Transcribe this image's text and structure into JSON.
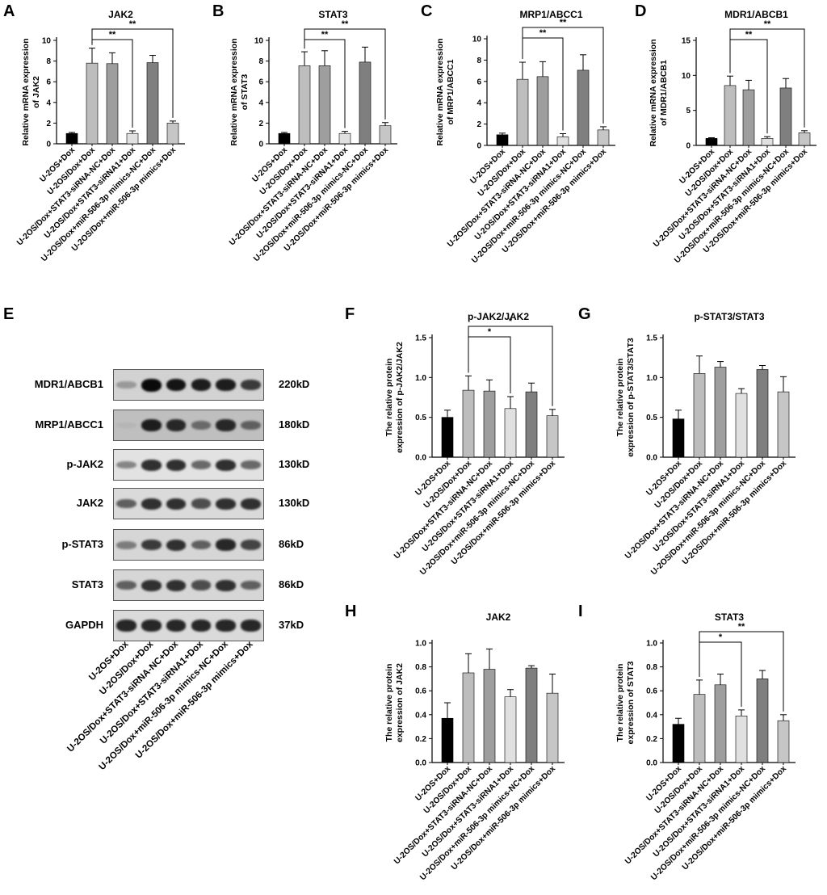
{
  "panel_letters": [
    "A",
    "B",
    "C",
    "D",
    "E",
    "F",
    "G",
    "H",
    "I"
  ],
  "colors": {
    "u2os": "#000000",
    "dox": "#bdbdbd",
    "nc": "#9e9e9e",
    "sirna": "#e0e0e0",
    "mimicsnc": "#7f7f7f",
    "mimics": "#c6c6c6",
    "axis": "#000000"
  },
  "categories": [
    "U-2OS+Dox",
    "U-2OS/Dox+Dox",
    "U-2OS/Dox+STAT3-siRNA-NC+Dox",
    "U-2OS/Dox+STAT3-siRNA1+Dox",
    "U-2OS/Dox+miR-506-3p mimics-NC+Dox",
    "U-2OS/Dox+miR-506-3p mimics+Dox"
  ],
  "blot": {
    "rows": [
      {
        "label": "MDR1/ABCB1",
        "size": "220kD",
        "intensity": [
          0.25,
          1.0,
          0.95,
          0.9,
          0.9,
          0.75
        ],
        "bg": "#d2d2d2"
      },
      {
        "label": "MRP1/ABCC1",
        "size": "180kD",
        "intensity": [
          0.1,
          0.9,
          0.85,
          0.5,
          0.85,
          0.55
        ],
        "bg": "#bfbfbf"
      },
      {
        "label": "p-JAK2",
        "size": "130kD",
        "intensity": [
          0.35,
          0.8,
          0.8,
          0.5,
          0.8,
          0.5
        ],
        "bg": "#e2e2e2"
      },
      {
        "label": "JAK2",
        "size": "130kD",
        "intensity": [
          0.55,
          0.8,
          0.8,
          0.65,
          0.8,
          0.8
        ],
        "bg": "#dadada"
      },
      {
        "label": "p-STAT3",
        "size": "86kD",
        "intensity": [
          0.4,
          0.75,
          0.8,
          0.55,
          0.85,
          0.7
        ],
        "bg": "#d6d6d6"
      },
      {
        "label": "STAT3",
        "size": "86kD",
        "intensity": [
          0.55,
          0.8,
          0.8,
          0.65,
          0.8,
          0.55
        ],
        "bg": "#d6d6d6"
      },
      {
        "label": "GAPDH",
        "size": "37kD",
        "intensity": [
          0.85,
          0.85,
          0.85,
          0.85,
          0.85,
          0.85
        ],
        "bg": "#dadada"
      }
    ]
  },
  "chart_data": [
    {
      "id": "A",
      "type": "bar",
      "title": "JAK2",
      "ylabel": [
        "Relative mRNA expression",
        "of JAK2"
      ],
      "ylim": [
        0,
        10
      ],
      "ticks": [
        0,
        2,
        4,
        6,
        8,
        10
      ],
      "values": [
        1.0,
        7.8,
        7.75,
        1.0,
        7.85,
        2.0
      ],
      "errors": [
        0.1,
        1.45,
        1.05,
        0.25,
        0.7,
        0.2
      ],
      "sig": [
        {
          "from": 1,
          "to": 3,
          "label": "**"
        },
        {
          "from": 1,
          "to": 5,
          "label": "**"
        }
      ]
    },
    {
      "id": "B",
      "type": "bar",
      "title": "STAT3",
      "ylabel": [
        "Relative mRNA expression",
        "of STAT3"
      ],
      "ylim": [
        0,
        10
      ],
      "ticks": [
        0,
        2,
        4,
        6,
        8,
        10
      ],
      "values": [
        1.0,
        7.55,
        7.55,
        1.0,
        7.9,
        1.75
      ],
      "errors": [
        0.1,
        1.35,
        1.45,
        0.2,
        1.45,
        0.3
      ],
      "sig": [
        {
          "from": 1,
          "to": 3,
          "label": "**"
        },
        {
          "from": 1,
          "to": 5,
          "label": "**"
        }
      ]
    },
    {
      "id": "C",
      "type": "bar",
      "title": "MRP1/ABCC1",
      "ylabel": [
        "Relative mRNA expression",
        "of MRP1/ABCC1"
      ],
      "ylim": [
        0,
        10
      ],
      "ticks": [
        0,
        2,
        4,
        6,
        8,
        10
      ],
      "values": [
        1.0,
        6.2,
        6.45,
        0.8,
        7.05,
        1.45
      ],
      "errors": [
        0.15,
        1.6,
        1.4,
        0.3,
        1.45,
        0.3
      ],
      "sig": [
        {
          "from": 1,
          "to": 3,
          "label": "**"
        },
        {
          "from": 1,
          "to": 5,
          "label": "**"
        }
      ]
    },
    {
      "id": "D",
      "type": "bar",
      "title": "MDR1/ABCB1",
      "ylabel": [
        "Relative mRNA expression",
        "of MDR1/ABCB1"
      ],
      "ylim": [
        0,
        15
      ],
      "ticks": [
        0,
        5,
        10,
        15
      ],
      "values": [
        1.0,
        8.55,
        7.95,
        1.0,
        8.2,
        1.8
      ],
      "errors": [
        0.1,
        1.35,
        1.35,
        0.25,
        1.35,
        0.3
      ],
      "sig": [
        {
          "from": 1,
          "to": 3,
          "label": "**"
        },
        {
          "from": 1,
          "to": 5,
          "label": "**"
        }
      ]
    },
    {
      "id": "F",
      "type": "bar",
      "title": "p-JAK2/JAK2",
      "ylabel": [
        "The relative protein",
        "expression of p-JAK2/JAK2"
      ],
      "ylim": [
        0,
        1.5
      ],
      "ticks": [
        0.0,
        0.5,
        1.0,
        1.5
      ],
      "tickfmt": 1,
      "values": [
        0.5,
        0.84,
        0.83,
        0.61,
        0.82,
        0.52
      ],
      "errors": [
        0.09,
        0.18,
        0.14,
        0.15,
        0.11,
        0.08
      ],
      "sig": [
        {
          "from": 1,
          "to": 3,
          "label": "*"
        },
        {
          "from": 1,
          "to": 5,
          "label": "*"
        }
      ]
    },
    {
      "id": "G",
      "type": "bar",
      "title": "p-STAT3/STAT3",
      "ylabel": [
        "The relative protein",
        "expression of p-STAT3/STAT3"
      ],
      "ylim": [
        0,
        1.5
      ],
      "ticks": [
        0.0,
        0.5,
        1.0,
        1.5
      ],
      "tickfmt": 1,
      "values": [
        0.48,
        1.05,
        1.13,
        0.8,
        1.1,
        0.82
      ],
      "errors": [
        0.11,
        0.22,
        0.07,
        0.06,
        0.05,
        0.19
      ],
      "sig": []
    },
    {
      "id": "H",
      "type": "bar",
      "title": "JAK2",
      "ylabel": [
        "The relative protein",
        "expression of JAK2"
      ],
      "ylim": [
        0,
        1.0
      ],
      "ticks": [
        0.0,
        0.2,
        0.4,
        0.6,
        0.8,
        1.0
      ],
      "tickfmt": 1,
      "values": [
        0.37,
        0.75,
        0.78,
        0.55,
        0.79,
        0.58
      ],
      "errors": [
        0.13,
        0.16,
        0.17,
        0.06,
        0.02,
        0.16
      ],
      "sig": []
    },
    {
      "id": "I",
      "type": "bar",
      "title": "STAT3",
      "ylabel": [
        "The relative protein",
        "expression of STAT3"
      ],
      "ylim": [
        0,
        1.0
      ],
      "ticks": [
        0.0,
        0.2,
        0.4,
        0.6,
        0.8,
        1.0
      ],
      "tickfmt": 1,
      "values": [
        0.32,
        0.57,
        0.65,
        0.39,
        0.7,
        0.35
      ],
      "errors": [
        0.05,
        0.12,
        0.09,
        0.05,
        0.07,
        0.05
      ],
      "sig": [
        {
          "from": 1,
          "to": 3,
          "label": "*"
        },
        {
          "from": 1,
          "to": 5,
          "label": "**"
        }
      ]
    }
  ]
}
